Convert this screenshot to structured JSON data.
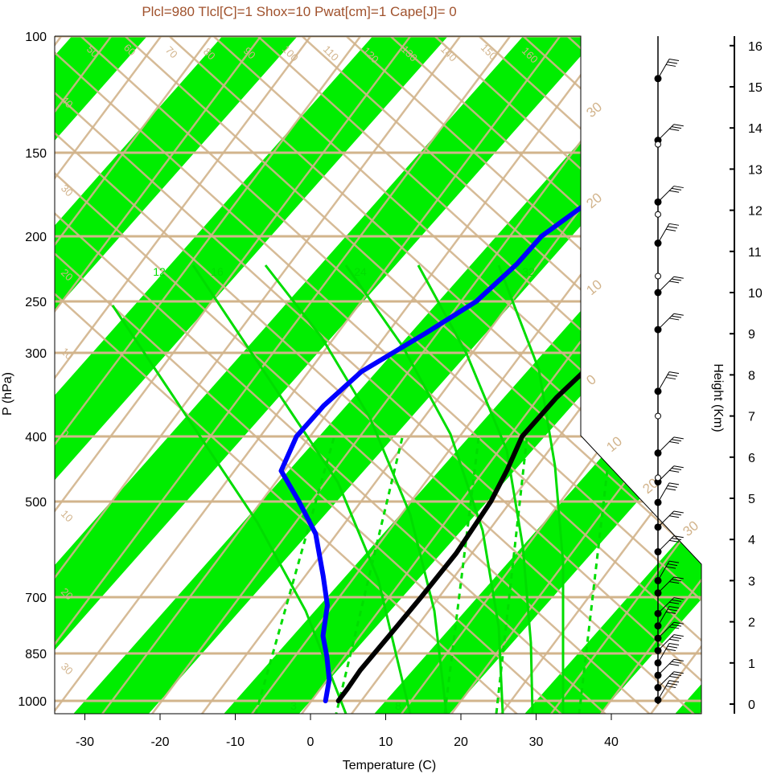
{
  "title": "Plcl=980 Tlcl[C]=1 Shox=10 Pwat[cm]=1 Cape[J]= 0",
  "colors": {
    "band": "#00ee00",
    "isoline": "#d2b48c",
    "mixing": "#00dd00",
    "temperature": "#000000",
    "dewpoint": "#0000ff",
    "title": "#a0522d"
  },
  "chart_data": {
    "type": "line",
    "xlabel": "Temperature (C)",
    "ylabel": "P (hPa)",
    "y2label": "Height (Km)",
    "x_ticks": [
      "-30",
      "-20",
      "-10",
      "0",
      "10",
      "20",
      "30",
      "40"
    ],
    "y_ticks": [
      "100",
      "150",
      "200",
      "250",
      "300",
      "400",
      "500",
      "700",
      "850",
      "1000"
    ],
    "height_ticks": [
      "0",
      "1",
      "2",
      "3",
      "4",
      "5",
      "6",
      "7",
      "8",
      "9",
      "10",
      "11",
      "12",
      "13",
      "14",
      "15",
      "16"
    ],
    "isotherm_labels": [
      "50",
      "60",
      "70",
      "80",
      "90",
      "100",
      "110",
      "120",
      "130",
      "140",
      "150",
      "160"
    ],
    "temp_side_labels": [
      "30",
      "20",
      "10",
      "0",
      "10",
      "20",
      "30"
    ],
    "left_side_labels": [
      "40",
      "30",
      "20",
      "10",
      "0",
      "10",
      "20",
      "30"
    ],
    "mixing_ratio_labels": [
      "12",
      "16",
      "24",
      "32",
      "3",
      "8"
    ],
    "series": [
      {
        "points": [
          [
            100,
            18.5
          ],
          [
            110,
            16.5
          ],
          [
            120,
            15.5
          ],
          [
            135,
            14
          ],
          [
            150,
            12
          ],
          [
            165,
            9.5
          ],
          [
            180,
            6.5
          ],
          [
            200,
            3
          ],
          [
            230,
            0
          ],
          [
            260,
            -1.5
          ],
          [
            300,
            -2
          ],
          [
            350,
            -3
          ],
          [
            400,
            -3
          ],
          [
            450,
            -1
          ],
          [
            500,
            0.5
          ],
          [
            600,
            2
          ],
          [
            700,
            2.5
          ],
          [
            800,
            2.8
          ],
          [
            900,
            3
          ],
          [
            960,
            3.5
          ],
          [
            1000,
            3.7
          ]
        ]
      },
      {
        "points": [
          [
            100,
            -5
          ],
          [
            120,
            -10
          ],
          [
            150,
            -17
          ],
          [
            180,
            -22
          ],
          [
            200,
            -24
          ],
          [
            220,
            -24
          ],
          [
            250,
            -25
          ],
          [
            280,
            -28
          ],
          [
            320,
            -32
          ],
          [
            360,
            -33
          ],
          [
            400,
            -33
          ],
          [
            450,
            -31
          ],
          [
            500,
            -25
          ],
          [
            560,
            -19
          ],
          [
            650,
            -13
          ],
          [
            720,
            -9
          ],
          [
            800,
            -6
          ],
          [
            860,
            -3
          ],
          [
            930,
            0
          ],
          [
            1000,
            2
          ]
        ]
      }
    ],
    "wind_dots_height_km": [
      15.2,
      13.7,
      12.2,
      11.2,
      10.0,
      9.1,
      7.6,
      6.1,
      5.4,
      4.9,
      4.3,
      3.7,
      3.0,
      2.7,
      2.2,
      1.9,
      1.6,
      1.3,
      1.0,
      0.7,
      0.4,
      0.1
    ],
    "wind_open_dots_height_km": [
      13.6,
      11.9,
      10.4,
      7.0,
      5.5
    ],
    "xlim": [
      -35,
      52
    ],
    "ylim": [
      1050,
      100
    ]
  }
}
